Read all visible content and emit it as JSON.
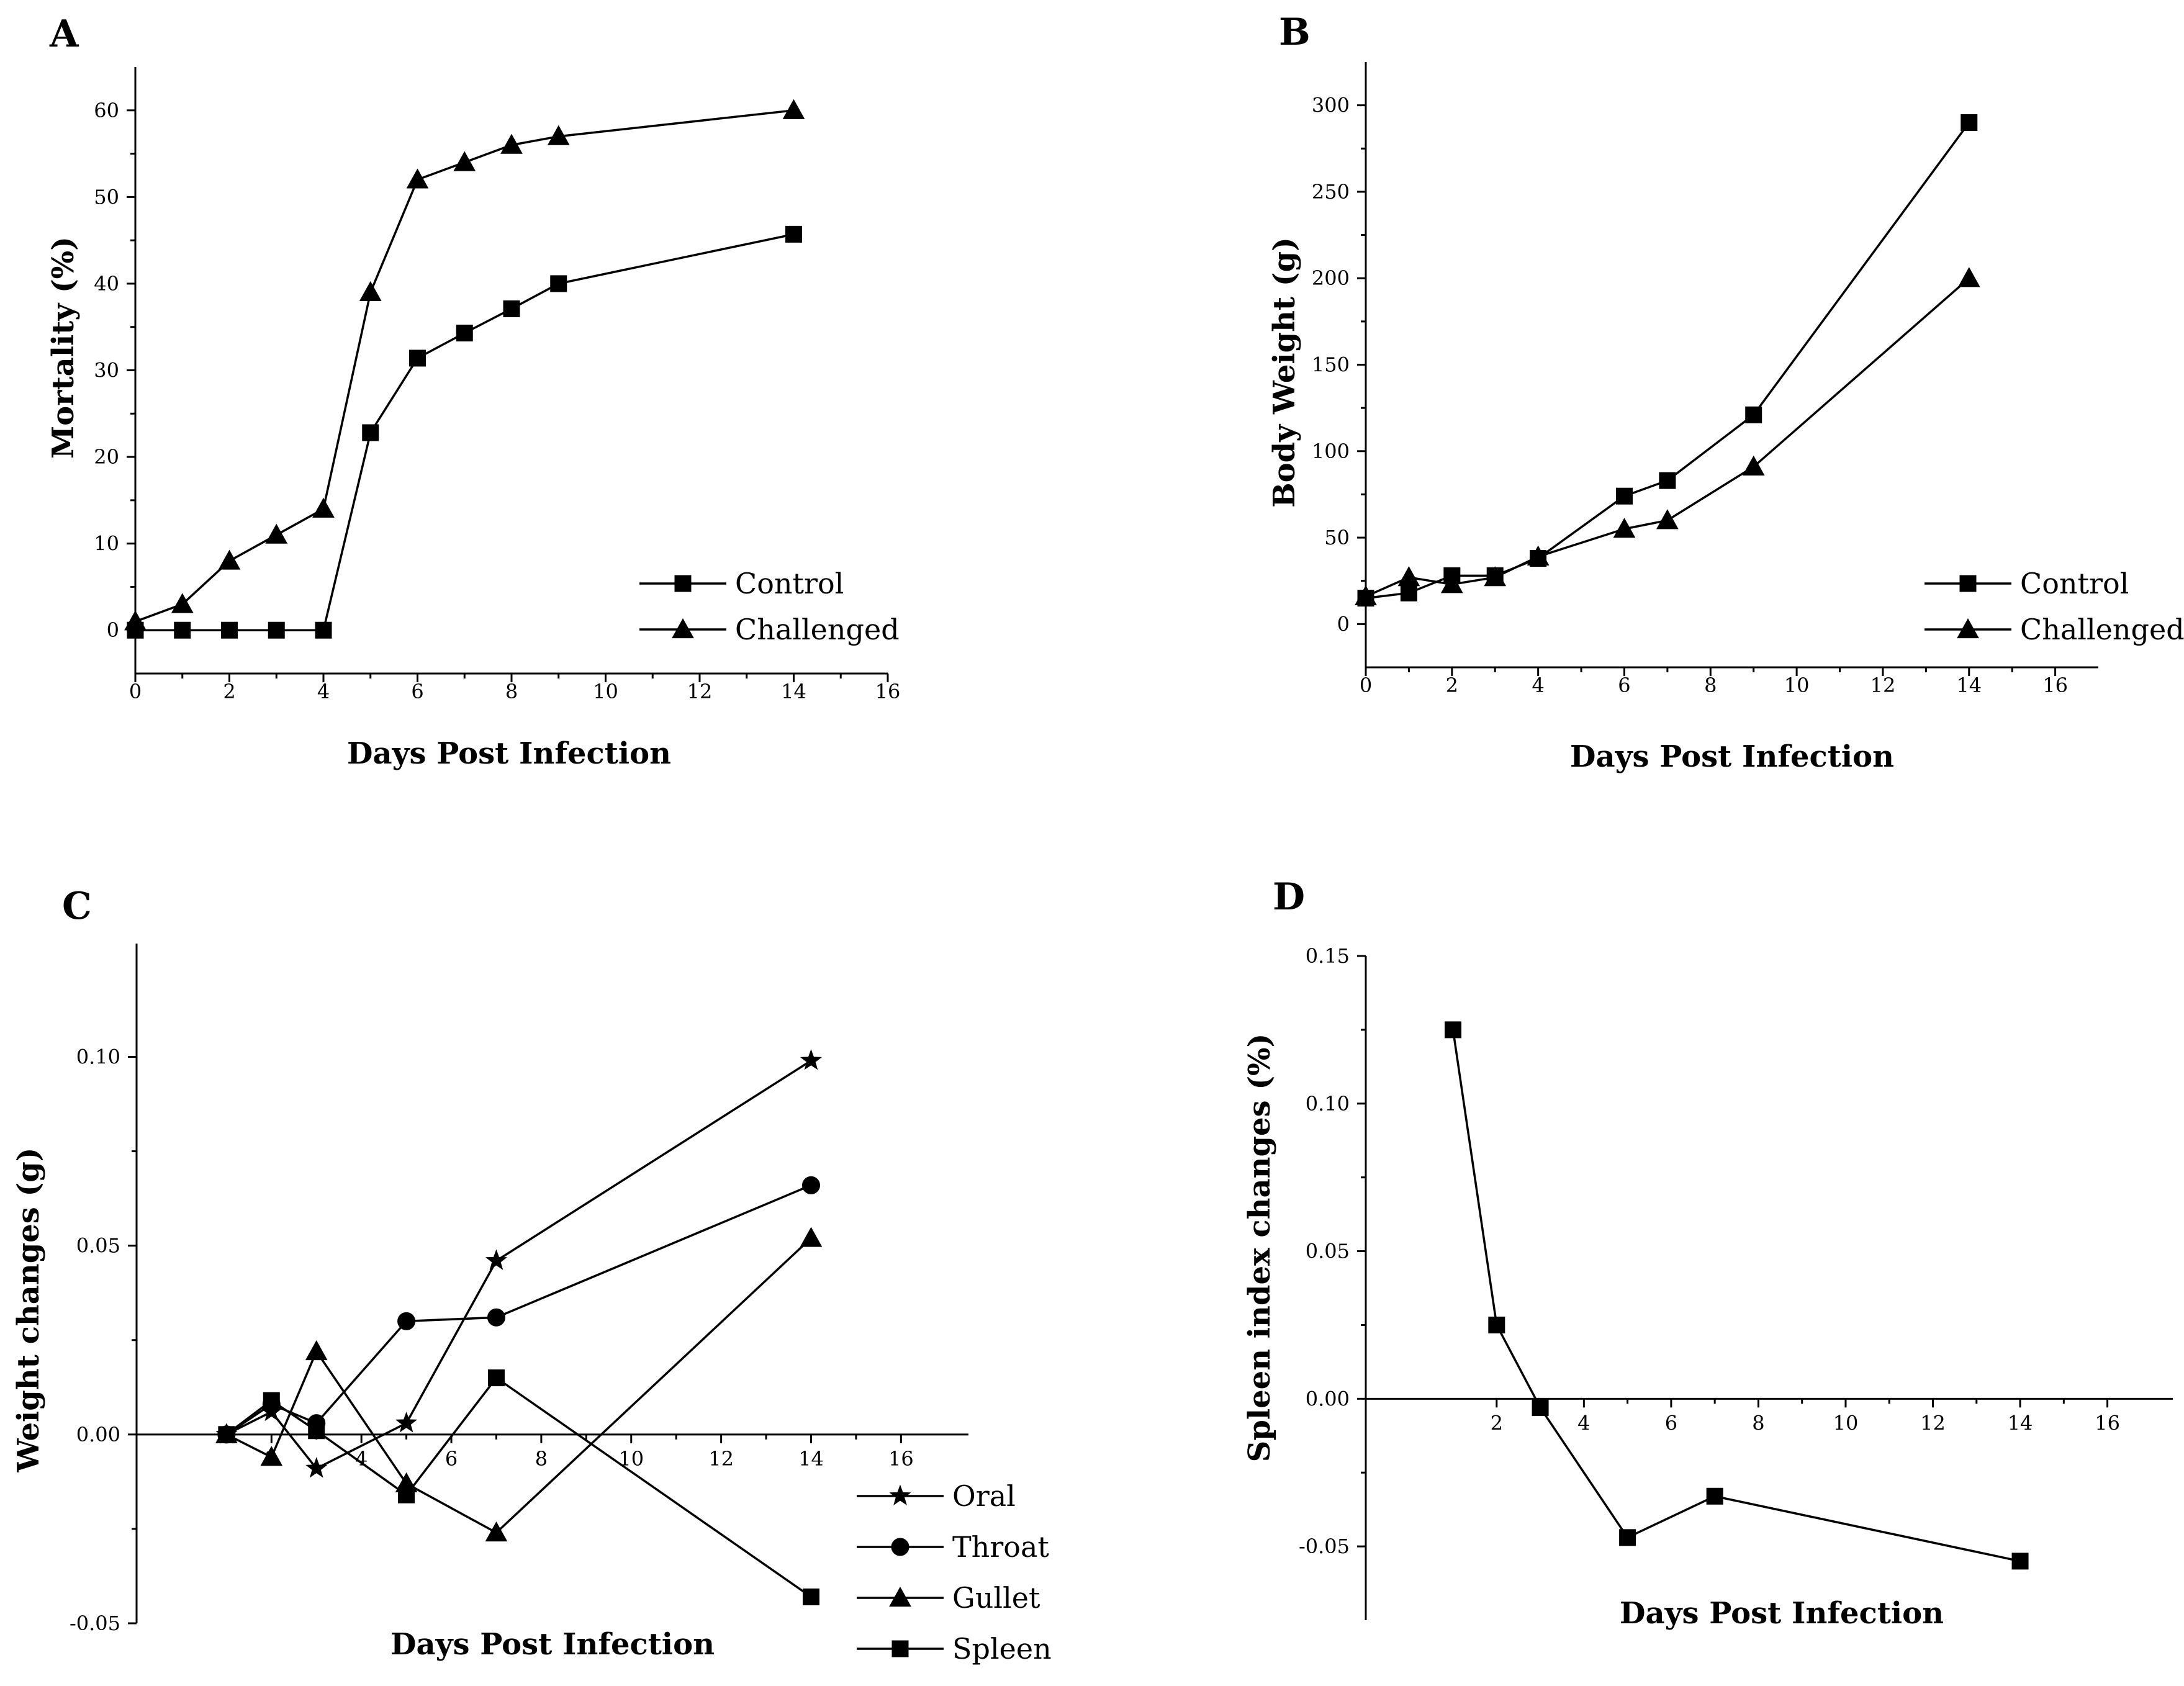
{
  "chart_data": [
    {
      "panel": "A",
      "type": "line",
      "xlabel": "Days Post Infection",
      "ylabel": "Mortality (%)",
      "xlim": [
        0,
        16
      ],
      "ylim": [
        -5,
        65
      ],
      "xticks": [
        0,
        2,
        4,
        6,
        8,
        10,
        12,
        14,
        16
      ],
      "yticks": [
        0,
        10,
        20,
        30,
        40,
        50,
        60
      ],
      "legend": "bottom-right",
      "series": [
        {
          "name": "Control",
          "marker": "square",
          "x": [
            0,
            1,
            2,
            3,
            4,
            5,
            6,
            7,
            8,
            9,
            14
          ],
          "y": [
            0,
            0,
            0,
            0,
            0,
            22.8,
            31.4,
            34.3,
            37.1,
            40,
            45.7
          ]
        },
        {
          "name": "Challenged",
          "marker": "triangle",
          "x": [
            0,
            1,
            2,
            3,
            4,
            5,
            6,
            7,
            8,
            9,
            14
          ],
          "y": [
            1,
            3,
            8,
            11,
            14,
            39,
            52,
            54,
            56,
            57,
            60
          ]
        }
      ]
    },
    {
      "panel": "B",
      "type": "line",
      "xlabel": "Days Post Infection",
      "ylabel": "Body Weight (g)",
      "xlim": [
        0,
        17
      ],
      "ylim": [
        -25,
        325
      ],
      "xticks": [
        0,
        2,
        4,
        6,
        8,
        10,
        12,
        14,
        16
      ],
      "yticks": [
        0,
        50,
        100,
        150,
        200,
        250,
        300
      ],
      "legend": "bottom-right",
      "series": [
        {
          "name": "Control",
          "marker": "square",
          "x": [
            0,
            1,
            2,
            3,
            4,
            6,
            7,
            9,
            14
          ],
          "y": [
            15,
            18,
            28,
            28,
            38,
            74,
            83,
            121,
            290
          ]
        },
        {
          "name": "Challenged",
          "marker": "triangle",
          "x": [
            0,
            1,
            2,
            3,
            4,
            6,
            7,
            9,
            14
          ],
          "y": [
            16,
            27,
            23,
            27,
            39,
            55,
            60,
            91,
            200
          ]
        }
      ]
    },
    {
      "panel": "C",
      "type": "line",
      "xlabel": "Days Post Infection",
      "ylabel": "Weight changes (g)",
      "xlim": [
        -1,
        17.5
      ],
      "ylim": [
        -0.05,
        0.13
      ],
      "xticks": [
        2,
        4,
        6,
        8,
        10,
        12,
        14,
        16
      ],
      "yticks": [
        -0.05,
        0.0,
        0.05,
        0.1
      ],
      "ytick_labels": [
        "-0.05",
        "0.00",
        "0.05",
        "0.10"
      ],
      "legend": "bottom-right",
      "series": [
        {
          "name": "Oral",
          "marker": "star",
          "x": [
            1,
            2,
            3,
            5,
            7,
            14
          ],
          "y": [
            0,
            0.006,
            -0.009,
            0.003,
            0.046,
            0.099
          ]
        },
        {
          "name": "Throat",
          "marker": "circle",
          "x": [
            1,
            2,
            3,
            5,
            7,
            14
          ],
          "y": [
            0,
            0.008,
            0.003,
            0.03,
            0.031,
            0.066
          ]
        },
        {
          "name": "Gullet",
          "marker": "triangle",
          "x": [
            1,
            2,
            3,
            5,
            7,
            14
          ],
          "y": [
            0,
            -0.006,
            0.022,
            -0.013,
            -0.026,
            0.052
          ]
        },
        {
          "name": "Spleen",
          "marker": "square",
          "x": [
            1,
            2,
            3,
            5,
            7,
            14
          ],
          "y": [
            0,
            0.009,
            0.001,
            -0.016,
            0.015,
            -0.043
          ]
        }
      ]
    },
    {
      "panel": "D",
      "type": "line",
      "xlabel": "Days Post Infection",
      "ylabel": "Spleen index changes (%)",
      "xlim": [
        -1,
        17.5
      ],
      "ylim": [
        -0.075,
        0.15
      ],
      "xticks": [
        2,
        4,
        6,
        8,
        10,
        12,
        14,
        16
      ],
      "yticks": [
        -0.05,
        0.0,
        0.05,
        0.1,
        0.15
      ],
      "ytick_labels": [
        "-0.05",
        "0.00",
        "0.05",
        "0.10",
        "0.15"
      ],
      "legend": "none",
      "series": [
        {
          "marker": "square",
          "x": [
            1,
            2,
            3,
            5,
            7,
            14
          ],
          "y": [
            0.125,
            0.025,
            -0.003,
            -0.047,
            -0.033,
            -0.055
          ]
        }
      ]
    }
  ]
}
